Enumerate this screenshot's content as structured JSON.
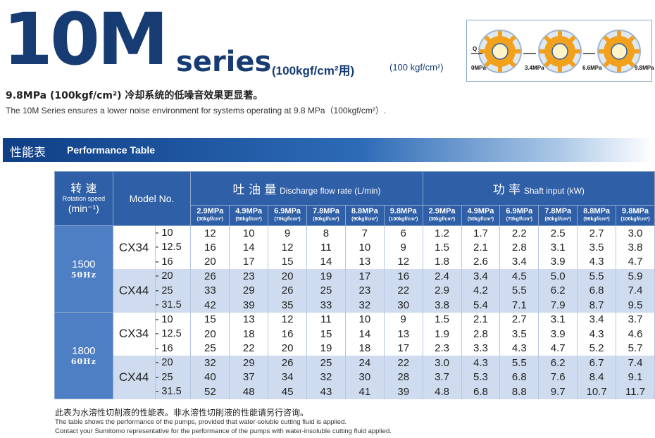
{
  "header": {
    "big": "10M",
    "series": "series",
    "sub_cn": "(100kgf/cm²用)",
    "sub_en": "(100 kgf/cm²)"
  },
  "description": {
    "cn": "9.8MPa (100kgf/cm²) 冷却系统的低噪音效果更显著。",
    "en": "The 10M Series ensures a lower noise environment for systems operating at 9.8 MPa（100kgf/cm²）."
  },
  "diagram": {
    "q_label": "Q",
    "pressures": [
      "0MPa",
      "3.4MPa",
      "6.6MPa",
      "9.8MPa"
    ],
    "colors": {
      "gear_outer": "#9fb6cc",
      "gear_inner": "#f2a11d",
      "hub": "#fff4c8",
      "ring": "#2f5fa6"
    }
  },
  "section": {
    "title_cn": "性能表",
    "title_en": "Performance Table"
  },
  "table": {
    "rotation_cn": "转 速",
    "rotation_en": "Rotation speed",
    "rotation_unit": "(min⁻¹)",
    "model_header": "Model No.",
    "discharge_cn": "吐 油 量",
    "discharge_en": "Discharge flow rate (L/min)",
    "power_cn": "功  率",
    "power_en": "Shaft input (kW)",
    "pressures": [
      {
        "p": "2.9MPa",
        "u": "(30kgf/cm²)"
      },
      {
        "p": "4.9MPa",
        "u": "(50kgf/cm²)"
      },
      {
        "p": "6.9MPa",
        "u": "(70kgf/cm²)"
      },
      {
        "p": "7.8MPa",
        "u": "(80kgf/cm²)"
      },
      {
        "p": "8.8MPa",
        "u": "(90kgf/cm²)"
      },
      {
        "p": "9.8MPa",
        "u": "(100kgf/cm²)"
      }
    ],
    "speeds": [
      {
        "rpm": "1500",
        "hz": "50Hz",
        "groups": [
          {
            "model": "CX34",
            "rows": [
              {
                "suffix": "- 10",
                "flow": [
                  "12",
                  "10",
                  "9",
                  "8",
                  "7",
                  "6"
                ],
                "power": [
                  "1.2",
                  "1.7",
                  "2.2",
                  "2.5",
                  "2.7",
                  "3.0"
                ]
              },
              {
                "suffix": "- 12.5",
                "flow": [
                  "16",
                  "14",
                  "12",
                  "11",
                  "10",
                  "9"
                ],
                "power": [
                  "1.5",
                  "2.1",
                  "2.8",
                  "3.1",
                  "3.5",
                  "3.8"
                ]
              },
              {
                "suffix": "- 16",
                "flow": [
                  "20",
                  "17",
                  "15",
                  "14",
                  "13",
                  "12"
                ],
                "power": [
                  "1.8",
                  "2.6",
                  "3.4",
                  "3.9",
                  "4.3",
                  "4.7"
                ]
              }
            ]
          },
          {
            "model": "CX44",
            "rows": [
              {
                "suffix": "- 20",
                "flow": [
                  "26",
                  "23",
                  "20",
                  "19",
                  "17",
                  "16"
                ],
                "power": [
                  "2.4",
                  "3.4",
                  "4.5",
                  "5.0",
                  "5.5",
                  "5.9"
                ]
              },
              {
                "suffix": "- 25",
                "flow": [
                  "33",
                  "29",
                  "26",
                  "25",
                  "23",
                  "22"
                ],
                "power": [
                  "2.9",
                  "4.2",
                  "5.5",
                  "6.2",
                  "6.8",
                  "7.4"
                ]
              },
              {
                "suffix": "- 31.5",
                "flow": [
                  "42",
                  "39",
                  "35",
                  "33",
                  "32",
                  "30"
                ],
                "power": [
                  "3.8",
                  "5.4",
                  "7.1",
                  "7.9",
                  "8.7",
                  "9.5"
                ]
              }
            ]
          }
        ]
      },
      {
        "rpm": "1800",
        "hz": "60Hz",
        "groups": [
          {
            "model": "CX34",
            "rows": [
              {
                "suffix": "- 10",
                "flow": [
                  "15",
                  "13",
                  "12",
                  "11",
                  "10",
                  "9"
                ],
                "power": [
                  "1.5",
                  "2.1",
                  "2.7",
                  "3.1",
                  "3.4",
                  "3.7"
                ]
              },
              {
                "suffix": "- 12.5",
                "flow": [
                  "20",
                  "18",
                  "16",
                  "15",
                  "14",
                  "13"
                ],
                "power": [
                  "1.9",
                  "2.8",
                  "3.5",
                  "3.9",
                  "4.3",
                  "4.6"
                ]
              },
              {
                "suffix": "- 16",
                "flow": [
                  "25",
                  "22",
                  "20",
                  "19",
                  "18",
                  "17"
                ],
                "power": [
                  "2.3",
                  "3.3",
                  "4.3",
                  "4.7",
                  "5.2",
                  "5.7"
                ]
              }
            ]
          },
          {
            "model": "CX44",
            "rows": [
              {
                "suffix": "- 20",
                "flow": [
                  "32",
                  "29",
                  "26",
                  "25",
                  "24",
                  "22"
                ],
                "power": [
                  "3.0",
                  "4.3",
                  "5.5",
                  "6.2",
                  "6.7",
                  "7.4"
                ]
              },
              {
                "suffix": "- 25",
                "flow": [
                  "40",
                  "37",
                  "34",
                  "32",
                  "30",
                  "28"
                ],
                "power": [
                  "3.7",
                  "5.3",
                  "6.8",
                  "7.6",
                  "8.4",
                  "9.1"
                ]
              },
              {
                "suffix": "- 31.5",
                "flow": [
                  "52",
                  "48",
                  "45",
                  "43",
                  "41",
                  "39"
                ],
                "power": [
                  "4.8",
                  "6.8",
                  "8.8",
                  "9.7",
                  "10.7",
                  "11.7"
                ]
              }
            ]
          }
        ]
      }
    ]
  },
  "notes": {
    "cn": "此表为水溶性切削液的性能表。非水溶性切削液的性能请另行咨询。",
    "en1": "The table shows the performance of the pumps, provided that water-soluble cutting fluid is applied.",
    "en2": "Contact your Sumitomo representative for the performance of the pumps with water-insoluble cutting fluid applied."
  }
}
